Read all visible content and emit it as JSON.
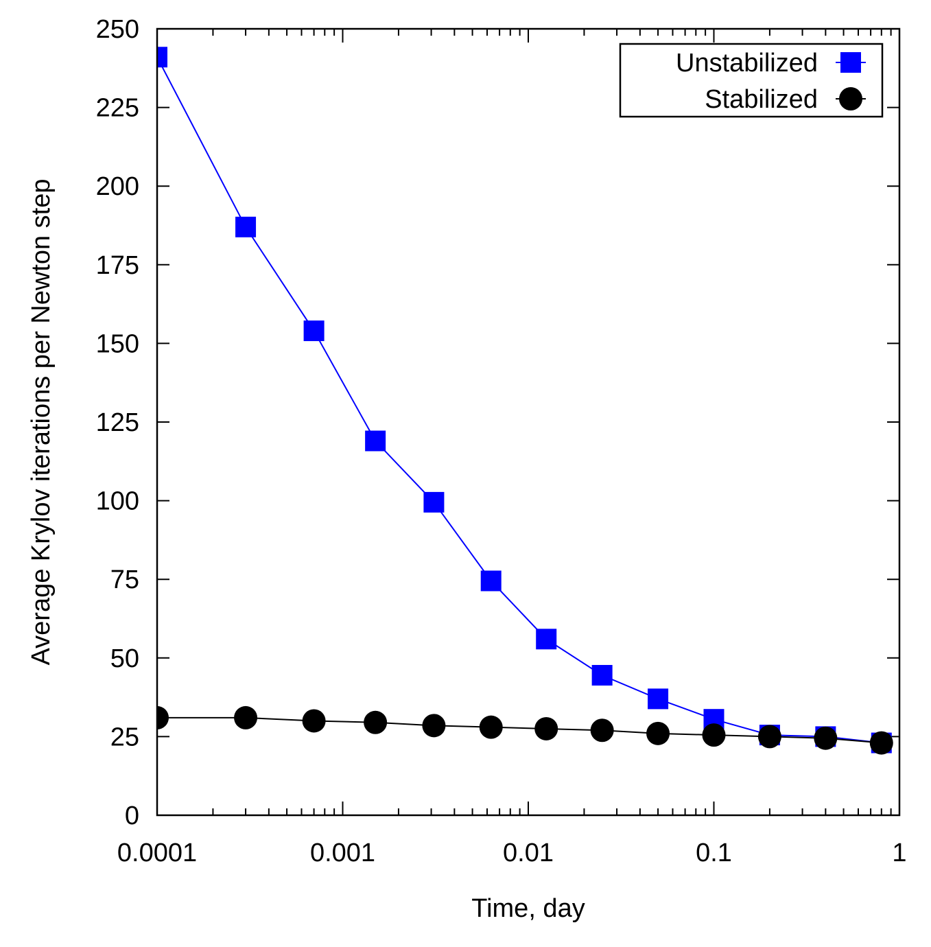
{
  "chart_data": {
    "type": "line",
    "xlabel": "Time, day",
    "ylabel": "Average Krylov iterations per Newton step",
    "x_scale": "log",
    "xlim": [
      0.0001,
      1
    ],
    "ylim": [
      0,
      250
    ],
    "x_ticks": [
      {
        "value": 0.0001,
        "label": "0.0001"
      },
      {
        "value": 0.001,
        "label": "0.001"
      },
      {
        "value": 0.01,
        "label": "0.01"
      },
      {
        "value": 0.1,
        "label": "0.1"
      },
      {
        "value": 1,
        "label": "1"
      }
    ],
    "y_ticks": [
      {
        "value": 0,
        "label": "0"
      },
      {
        "value": 25,
        "label": "25"
      },
      {
        "value": 50,
        "label": "50"
      },
      {
        "value": 75,
        "label": "75"
      },
      {
        "value": 100,
        "label": "100"
      },
      {
        "value": 125,
        "label": "125"
      },
      {
        "value": 150,
        "label": "150"
      },
      {
        "value": 175,
        "label": "175"
      },
      {
        "value": 200,
        "label": "200"
      },
      {
        "value": 225,
        "label": "225"
      },
      {
        "value": 250,
        "label": "250"
      }
    ],
    "grid": false,
    "legend_position": "top-right",
    "series": [
      {
        "name": "Unstabilized",
        "marker": "square",
        "color": "#0000ff",
        "x": [
          0.0001,
          0.0003,
          0.0007,
          0.0015,
          0.0031,
          0.0063,
          0.0125,
          0.025,
          0.05,
          0.1,
          0.2,
          0.4,
          0.8
        ],
        "y": [
          241,
          187,
          154,
          119,
          99.5,
          74.5,
          56,
          44.5,
          37,
          30.5,
          25.5,
          25,
          23
        ]
      },
      {
        "name": "Stabilized",
        "marker": "circle",
        "color": "#000000",
        "x": [
          0.0001,
          0.0003,
          0.0007,
          0.0015,
          0.0031,
          0.0063,
          0.0125,
          0.025,
          0.05,
          0.1,
          0.2,
          0.4,
          0.8
        ],
        "y": [
          31,
          31,
          30,
          29.5,
          28.5,
          28,
          27.5,
          27,
          26,
          25.5,
          25,
          24.5,
          23
        ]
      }
    ]
  }
}
